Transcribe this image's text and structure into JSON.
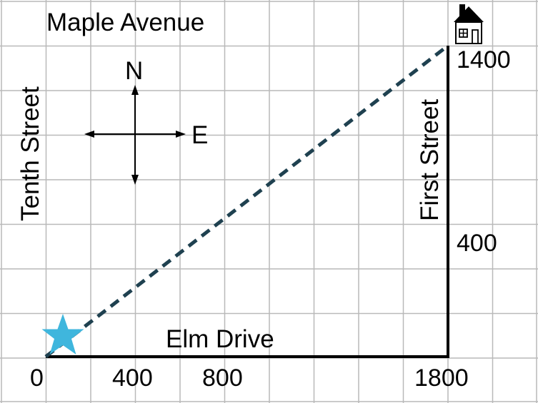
{
  "labels": {
    "maple": "Maple Avenue",
    "tenth": "Tenth Street",
    "first": "First Street",
    "elm": "Elm Drive",
    "north": "N",
    "east": "E"
  },
  "ticks": {
    "x0": "0",
    "x400": "400",
    "x800": "800",
    "x1800": "1800",
    "y400": "400",
    "y1400": "1400"
  },
  "colors": {
    "grid": "#b9b9b9",
    "route": "#1f4150",
    "star": "#3fb6dd",
    "street": "#000000"
  },
  "icons": {
    "start": "star-icon",
    "destination": "house-icon",
    "compass": "compass-icon"
  }
}
